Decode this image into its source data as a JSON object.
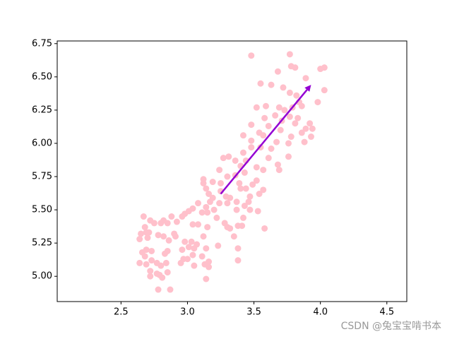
{
  "chart_data": {
    "type": "scatter",
    "color": "#ffc0cb",
    "x": [
      3.48,
      3.77,
      3.78,
      3.81,
      4.0,
      4.03,
      3.68,
      3.55,
      3.63,
      3.72,
      3.77,
      3.82,
      3.89,
      4.03,
      3.84,
      3.98,
      3.59,
      3.52,
      3.69,
      3.73,
      3.79,
      3.86,
      3.66,
      3.58,
      3.77,
      3.83,
      3.71,
      3.92,
      3.48,
      3.61,
      3.81,
      3.89,
      3.94,
      3.54,
      3.7,
      3.86,
      3.42,
      3.57,
      3.78,
      3.93,
      3.48,
      3.67,
      3.88,
      3.76,
      3.55,
      3.63,
      3.48,
      3.42,
      3.31,
      3.27,
      3.36,
      3.44,
      3.61,
      3.76,
      3.4,
      3.52,
      3.68,
      3.69,
      3.57,
      3.24,
      3.43,
      3.36,
      3.3,
      3.19,
      3.12,
      3.12,
      3.25,
      3.39,
      3.52,
      3.49,
      3.44,
      3.57,
      3.14,
      3.25,
      3.29,
      3.4,
      3.16,
      3.19,
      3.54,
      3.32,
      3.47,
      3.46,
      3.24,
      3.3,
      3.37,
      3.08,
      3.17,
      3.14,
      3.2,
      3.04,
      3.01,
      3.15,
      3.11,
      3.22,
      3.37,
      3.43,
      3.47,
      3.53,
      3.42,
      3.28,
      3.32,
      3.38,
      3.41,
      3.58,
      3.35,
      3.3,
      3.12,
      3.15,
      3.04,
      3.08,
      2.98,
      2.96,
      2.92,
      2.85,
      2.8,
      2.88,
      2.82,
      2.75,
      2.67,
      2.72,
      2.68,
      2.69,
      2.71,
      2.65,
      2.64,
      2.7,
      2.78,
      2.82,
      2.86,
      2.91,
      2.9,
      2.98,
      3.03,
      3.07,
      3.01,
      3.05,
      3.14,
      3.23,
      3.38,
      2.96,
      2.97,
      3.04,
      3.11,
      3.16,
      2.95,
      3.0,
      3.13,
      3.38,
      3.05,
      3.16,
      2.85,
      2.83,
      2.73,
      2.69,
      2.66,
      2.68,
      2.64,
      2.69,
      2.73,
      2.77,
      2.8,
      2.84,
      2.72,
      2.77,
      2.79,
      2.81,
      2.85,
      2.72,
      2.78,
      2.87,
      3.14
    ],
    "values": [
      6.66,
      6.67,
      6.58,
      6.57,
      6.56,
      6.57,
      6.54,
      6.45,
      6.44,
      6.42,
      6.38,
      6.36,
      6.49,
      6.4,
      6.31,
      6.31,
      6.28,
      6.27,
      6.27,
      6.25,
      6.27,
      6.28,
      6.21,
      6.19,
      6.2,
      6.19,
      6.17,
      6.15,
      6.14,
      6.13,
      6.15,
      6.11,
      6.11,
      6.08,
      6.1,
      6.08,
      6.06,
      6.06,
      6.05,
      6.05,
      6.02,
      6.01,
      6.01,
      6.0,
      5.97,
      5.96,
      5.97,
      5.93,
      5.9,
      5.89,
      5.87,
      5.87,
      5.89,
      5.9,
      5.83,
      5.82,
      5.84,
      5.8,
      5.8,
      5.8,
      5.78,
      5.76,
      5.75,
      5.71,
      5.73,
      5.7,
      5.7,
      5.7,
      5.72,
      5.69,
      5.66,
      5.65,
      5.66,
      5.64,
      5.6,
      5.66,
      5.62,
      5.59,
      5.62,
      5.59,
      5.6,
      5.56,
      5.55,
      5.55,
      5.56,
      5.55,
      5.56,
      5.52,
      5.5,
      5.51,
      5.49,
      5.48,
      5.48,
      5.44,
      5.5,
      5.53,
      5.5,
      5.49,
      5.44,
      5.4,
      5.36,
      5.38,
      5.38,
      5.36,
      5.3,
      5.37,
      5.3,
      5.37,
      5.39,
      5.39,
      5.47,
      5.45,
      5.41,
      5.4,
      5.4,
      5.45,
      5.42,
      5.4,
      5.45,
      5.42,
      5.37,
      5.33,
      5.33,
      5.32,
      5.28,
      5.29,
      5.31,
      5.3,
      5.27,
      5.3,
      5.32,
      5.26,
      5.26,
      5.24,
      5.22,
      5.21,
      5.21,
      5.23,
      5.21,
      5.2,
      5.13,
      5.16,
      5.15,
      5.11,
      5.1,
      5.13,
      5.09,
      5.12,
      5.08,
      5.07,
      5.19,
      5.17,
      5.19,
      5.2,
      5.18,
      5.15,
      5.1,
      5.09,
      5.12,
      5.1,
      5.08,
      5.1,
      5.04,
      5.02,
      5.01,
      4.99,
      5.03,
      5.0,
      4.9,
      4.9,
      4.98
    ],
    "arrow": {
      "start": [
        3.25,
        5.62
      ],
      "end": [
        3.93,
        6.44
      ],
      "color": "#9400d3"
    },
    "xlim": [
      2.02,
      4.65
    ],
    "ylim": [
      4.81,
      6.77
    ],
    "xticks": [
      2.5,
      {
        "value": 3,
        "label": "3.0"
      },
      3.5,
      {
        "value": 4,
        "label": "4.0"
      },
      4.5
    ],
    "yticks": [
      {
        "value": 5,
        "label": "5.00"
      },
      5.25,
      {
        "value": 5.5,
        "label": "5.50"
      },
      5.75,
      {
        "value": 6,
        "label": "6.00"
      },
      6.25,
      {
        "value": 6.5,
        "label": "6.50"
      },
      6.75
    ],
    "watermark": "CSDN @兔宝宝啃书本"
  }
}
